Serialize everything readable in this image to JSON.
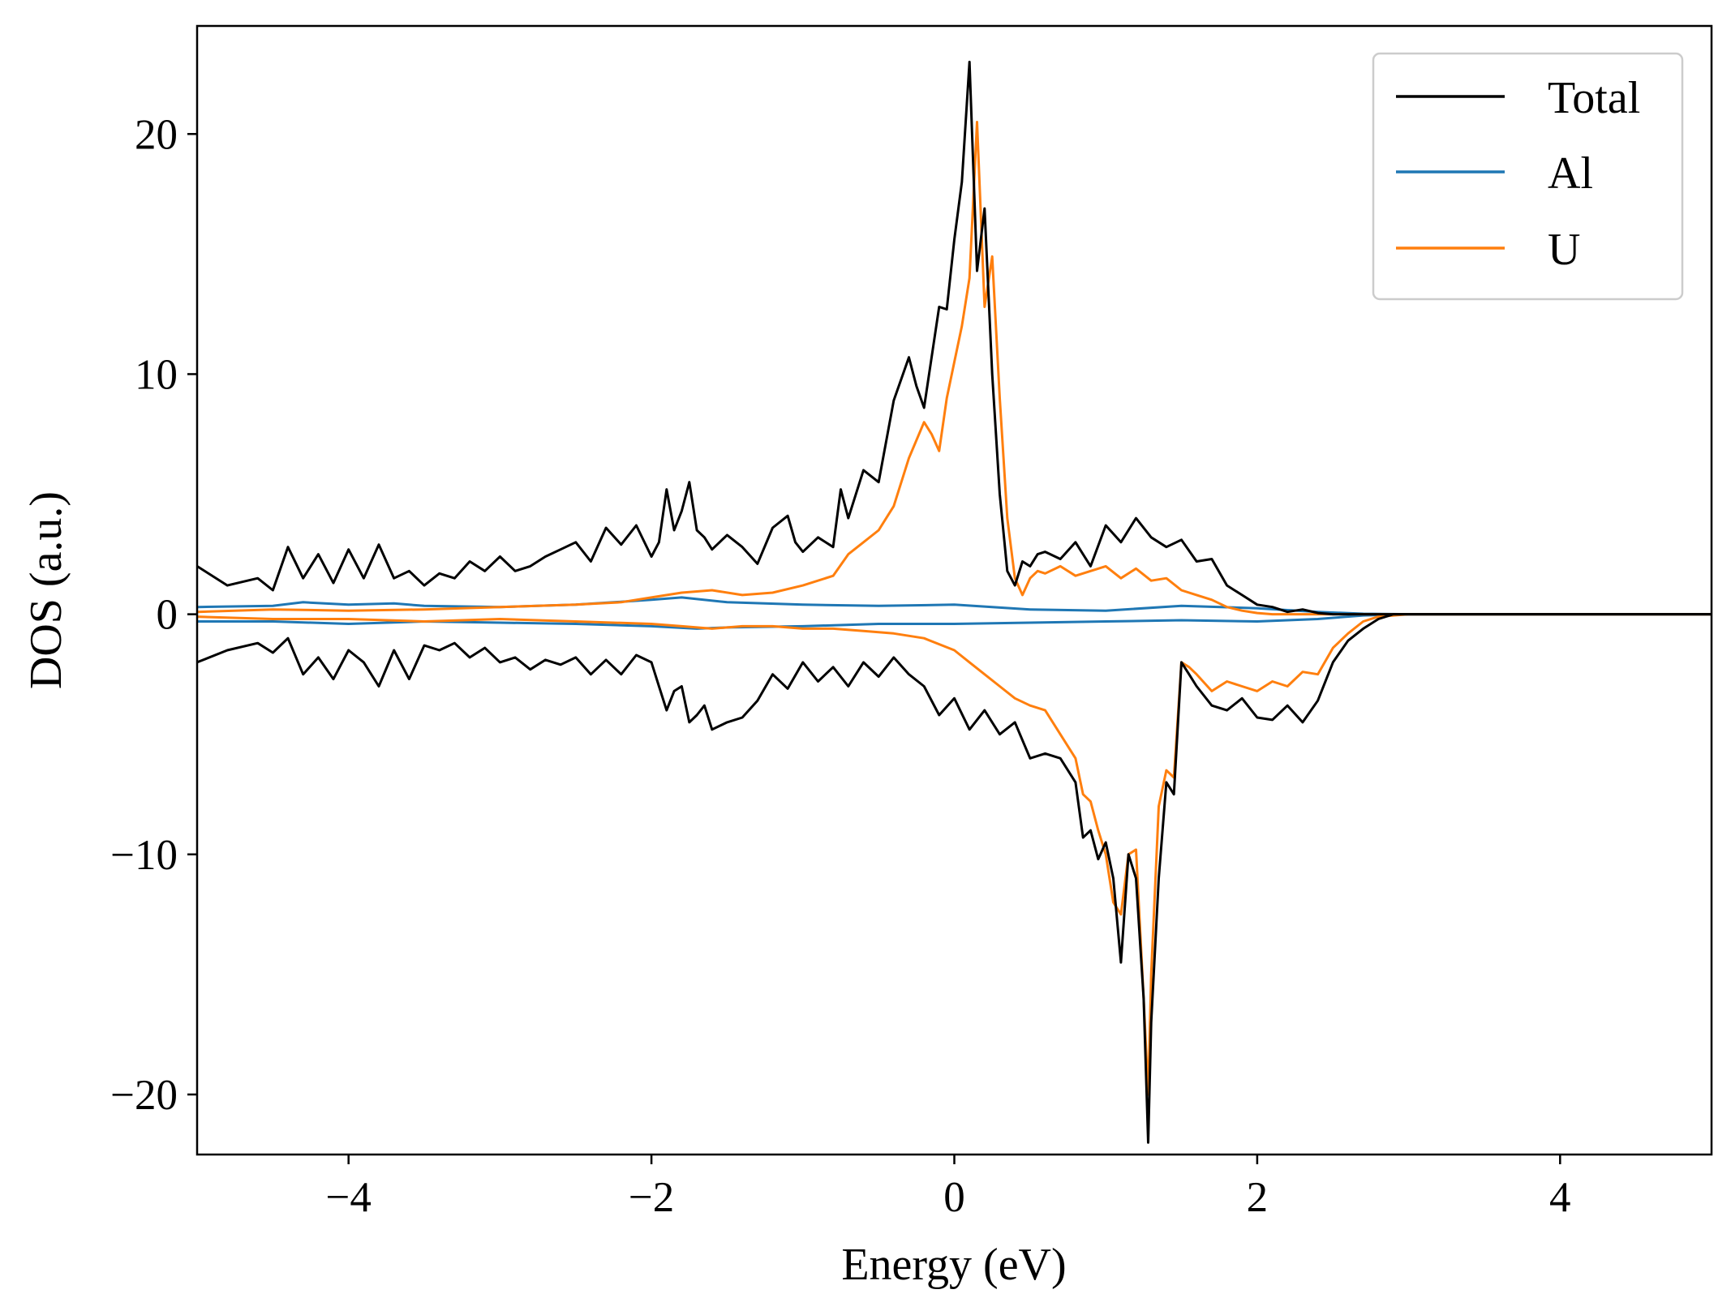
{
  "chart_data": {
    "type": "line",
    "title": "",
    "xlabel": "Energy (eV)",
    "ylabel": "DOS (a.u.)",
    "xlim": [
      -5,
      5
    ],
    "ylim": [
      -22.5,
      24.5
    ],
    "xticks": [
      -4,
      -2,
      0,
      2,
      4
    ],
    "xtick_labels": [
      "−4",
      "−2",
      "0",
      "2",
      "4"
    ],
    "yticks": [
      -20,
      -10,
      0,
      10,
      20
    ],
    "ytick_labels": [
      "−20",
      "−10",
      "0",
      "10",
      "20"
    ],
    "legend": {
      "placement": "top-right",
      "entries": [
        "Total",
        "Al",
        "U"
      ]
    },
    "grid": false,
    "colors": {
      "Total": "#000000",
      "Al": "#1f77b4",
      "U": "#ff7f0e"
    },
    "series": [
      {
        "name": "Total",
        "spin": "up",
        "x": [
          -5.0,
          -4.8,
          -4.6,
          -4.5,
          -4.4,
          -4.3,
          -4.2,
          -4.1,
          -4.0,
          -3.9,
          -3.8,
          -3.7,
          -3.6,
          -3.5,
          -3.4,
          -3.3,
          -3.2,
          -3.1,
          -3.0,
          -2.9,
          -2.8,
          -2.7,
          -2.6,
          -2.5,
          -2.4,
          -2.3,
          -2.2,
          -2.1,
          -2.0,
          -1.95,
          -1.9,
          -1.85,
          -1.8,
          -1.75,
          -1.7,
          -1.65,
          -1.6,
          -1.5,
          -1.4,
          -1.3,
          -1.2,
          -1.1,
          -1.05,
          -1.0,
          -0.9,
          -0.8,
          -0.75,
          -0.7,
          -0.6,
          -0.5,
          -0.4,
          -0.3,
          -0.25,
          -0.2,
          -0.1,
          -0.05,
          0.0,
          0.05,
          0.1,
          0.15,
          0.2,
          0.25,
          0.3,
          0.35,
          0.4,
          0.45,
          0.5,
          0.55,
          0.6,
          0.7,
          0.8,
          0.9,
          1.0,
          1.1,
          1.2,
          1.3,
          1.4,
          1.5,
          1.6,
          1.7,
          1.8,
          1.9,
          2.0,
          2.1,
          2.2,
          2.3,
          2.4,
          2.5,
          2.6,
          2.7,
          2.8,
          2.9,
          3.0,
          3.2,
          4.0,
          5.0
        ],
        "y": [
          2.0,
          1.2,
          1.5,
          1.0,
          2.8,
          1.5,
          2.5,
          1.3,
          2.7,
          1.5,
          2.9,
          1.5,
          1.8,
          1.2,
          1.7,
          1.5,
          2.2,
          1.8,
          2.4,
          1.8,
          2.0,
          2.4,
          2.7,
          3.0,
          2.2,
          3.6,
          2.9,
          3.7,
          2.4,
          3.0,
          5.2,
          3.5,
          4.3,
          5.5,
          3.5,
          3.2,
          2.7,
          3.3,
          2.8,
          2.1,
          3.6,
          4.1,
          3.0,
          2.6,
          3.2,
          2.8,
          5.2,
          4.0,
          6.0,
          5.5,
          8.9,
          10.7,
          9.5,
          8.6,
          12.8,
          12.7,
          15.6,
          18.0,
          23.0,
          14.3,
          16.9,
          10.0,
          5.0,
          1.8,
          1.2,
          2.2,
          2.0,
          2.5,
          2.6,
          2.3,
          3.0,
          2.0,
          3.7,
          3.0,
          4.0,
          3.2,
          2.8,
          3.1,
          2.2,
          2.3,
          1.2,
          0.8,
          0.4,
          0.3,
          0.1,
          0.2,
          0.05,
          0.0,
          0.0,
          0.0,
          0.0,
          0.0,
          0.0,
          0.0,
          0.0,
          0.0
        ]
      },
      {
        "name": "Total",
        "spin": "down",
        "x": [
          -5.0,
          -4.8,
          -4.6,
          -4.5,
          -4.4,
          -4.3,
          -4.2,
          -4.1,
          -4.0,
          -3.9,
          -3.8,
          -3.7,
          -3.6,
          -3.5,
          -3.4,
          -3.3,
          -3.2,
          -3.1,
          -3.0,
          -2.9,
          -2.8,
          -2.7,
          -2.6,
          -2.5,
          -2.4,
          -2.3,
          -2.2,
          -2.1,
          -2.0,
          -1.95,
          -1.9,
          -1.85,
          -1.8,
          -1.75,
          -1.7,
          -1.65,
          -1.6,
          -1.5,
          -1.4,
          -1.3,
          -1.2,
          -1.1,
          -1.0,
          -0.9,
          -0.8,
          -0.7,
          -0.6,
          -0.5,
          -0.4,
          -0.3,
          -0.2,
          -0.1,
          0.0,
          0.1,
          0.2,
          0.3,
          0.4,
          0.5,
          0.6,
          0.7,
          0.8,
          0.85,
          0.9,
          0.95,
          1.0,
          1.05,
          1.1,
          1.15,
          1.2,
          1.25,
          1.28,
          1.3,
          1.35,
          1.4,
          1.45,
          1.5,
          1.55,
          1.6,
          1.7,
          1.8,
          1.9,
          2.0,
          2.1,
          2.2,
          2.3,
          2.4,
          2.5,
          2.6,
          2.7,
          2.8,
          2.9,
          3.0,
          4.0,
          5.0
        ],
        "y": [
          -2.0,
          -1.5,
          -1.2,
          -1.6,
          -1.0,
          -2.5,
          -1.8,
          -2.7,
          -1.5,
          -2.0,
          -3.0,
          -1.5,
          -2.7,
          -1.3,
          -1.5,
          -1.2,
          -1.8,
          -1.4,
          -2.0,
          -1.8,
          -2.3,
          -1.9,
          -2.1,
          -1.8,
          -2.5,
          -1.9,
          -2.5,
          -1.7,
          -2.0,
          -3.0,
          -4.0,
          -3.2,
          -3.0,
          -4.5,
          -4.2,
          -3.8,
          -4.8,
          -4.5,
          -4.3,
          -3.6,
          -2.5,
          -3.1,
          -2.0,
          -2.8,
          -2.2,
          -3.0,
          -2.0,
          -2.6,
          -1.8,
          -2.5,
          -3.0,
          -4.2,
          -3.5,
          -4.8,
          -4.0,
          -5.0,
          -4.5,
          -6.0,
          -5.8,
          -6.0,
          -7.0,
          -9.3,
          -9.0,
          -10.2,
          -9.5,
          -11.0,
          -14.5,
          -10.0,
          -11.0,
          -16.0,
          -22.0,
          -17.0,
          -11.0,
          -7.0,
          -7.5,
          -2.0,
          -2.5,
          -3.0,
          -3.8,
          -4.0,
          -3.5,
          -4.3,
          -4.4,
          -3.8,
          -4.5,
          -3.6,
          -2.0,
          -1.1,
          -0.6,
          -0.2,
          0.0,
          0.0,
          0.0,
          0.0
        ]
      },
      {
        "name": "Al",
        "spin": "up",
        "x": [
          -5.0,
          -4.5,
          -4.3,
          -4.0,
          -3.7,
          -3.5,
          -3.0,
          -2.5,
          -2.0,
          -1.8,
          -1.5,
          -1.0,
          -0.5,
          0.0,
          0.5,
          1.0,
          1.5,
          2.0,
          2.4,
          2.7,
          3.0,
          5.0
        ],
        "y": [
          0.3,
          0.35,
          0.5,
          0.4,
          0.45,
          0.35,
          0.3,
          0.4,
          0.6,
          0.7,
          0.5,
          0.4,
          0.35,
          0.4,
          0.2,
          0.15,
          0.35,
          0.25,
          0.1,
          0.02,
          0.0,
          0.0
        ]
      },
      {
        "name": "Al",
        "spin": "down",
        "x": [
          -5.0,
          -4.5,
          -4.0,
          -3.5,
          -3.0,
          -2.5,
          -2.0,
          -1.7,
          -1.5,
          -1.0,
          -0.5,
          0.0,
          0.5,
          1.0,
          1.5,
          2.0,
          2.4,
          2.7,
          3.0,
          5.0
        ],
        "y": [
          -0.3,
          -0.3,
          -0.4,
          -0.3,
          -0.35,
          -0.4,
          -0.5,
          -0.6,
          -0.55,
          -0.5,
          -0.4,
          -0.4,
          -0.35,
          -0.3,
          -0.25,
          -0.3,
          -0.2,
          -0.05,
          0.0,
          0.0
        ]
      },
      {
        "name": "U",
        "spin": "up",
        "x": [
          -5.0,
          -4.5,
          -4.0,
          -3.5,
          -3.0,
          -2.5,
          -2.2,
          -2.0,
          -1.8,
          -1.6,
          -1.4,
          -1.2,
          -1.0,
          -0.8,
          -0.7,
          -0.6,
          -0.5,
          -0.4,
          -0.3,
          -0.2,
          -0.15,
          -0.1,
          -0.05,
          0.0,
          0.05,
          0.1,
          0.15,
          0.2,
          0.25,
          0.3,
          0.35,
          0.4,
          0.45,
          0.5,
          0.55,
          0.6,
          0.7,
          0.8,
          0.9,
          1.0,
          1.1,
          1.2,
          1.3,
          1.4,
          1.5,
          1.6,
          1.7,
          1.8,
          1.9,
          2.0,
          2.1,
          2.2,
          2.3,
          2.4,
          2.5,
          2.6,
          2.7,
          2.8,
          3.0,
          5.0
        ],
        "y": [
          0.1,
          0.2,
          0.15,
          0.2,
          0.3,
          0.4,
          0.5,
          0.7,
          0.9,
          1.0,
          0.8,
          0.9,
          1.2,
          1.6,
          2.5,
          3.0,
          3.5,
          4.5,
          6.5,
          8.0,
          7.5,
          6.8,
          9.0,
          10.5,
          12.0,
          14.0,
          20.5,
          12.8,
          14.9,
          9.0,
          4.0,
          1.5,
          0.8,
          1.5,
          1.8,
          1.7,
          2.0,
          1.6,
          1.8,
          2.0,
          1.5,
          1.9,
          1.4,
          1.5,
          1.0,
          0.8,
          0.6,
          0.3,
          0.15,
          0.05,
          0.0,
          0.0,
          0.0,
          0.0,
          0.0,
          0.0,
          0.0,
          0.0,
          0.0,
          0.0
        ]
      },
      {
        "name": "U",
        "spin": "down",
        "x": [
          -5.0,
          -4.5,
          -4.0,
          -3.5,
          -3.0,
          -2.5,
          -2.0,
          -1.8,
          -1.6,
          -1.4,
          -1.2,
          -1.0,
          -0.8,
          -0.6,
          -0.4,
          -0.2,
          0.0,
          0.1,
          0.2,
          0.3,
          0.4,
          0.5,
          0.6,
          0.7,
          0.8,
          0.85,
          0.9,
          0.95,
          1.0,
          1.05,
          1.1,
          1.15,
          1.2,
          1.25,
          1.28,
          1.3,
          1.35,
          1.4,
          1.45,
          1.5,
          1.55,
          1.6,
          1.7,
          1.8,
          1.9,
          2.0,
          2.1,
          2.2,
          2.3,
          2.4,
          2.5,
          2.6,
          2.7,
          2.8,
          3.0,
          5.0
        ],
        "y": [
          -0.1,
          -0.2,
          -0.2,
          -0.3,
          -0.2,
          -0.3,
          -0.4,
          -0.5,
          -0.6,
          -0.5,
          -0.5,
          -0.6,
          -0.6,
          -0.7,
          -0.8,
          -1.0,
          -1.5,
          -2.0,
          -2.5,
          -3.0,
          -3.5,
          -3.8,
          -4.0,
          -5.0,
          -6.0,
          -7.5,
          -7.8,
          -9.0,
          -10.0,
          -12.0,
          -12.5,
          -10.0,
          -9.8,
          -16.0,
          -20.0,
          -15.0,
          -8.0,
          -6.5,
          -6.8,
          -2.0,
          -2.2,
          -2.5,
          -3.2,
          -2.8,
          -3.0,
          -3.2,
          -2.8,
          -3.0,
          -2.4,
          -2.5,
          -1.4,
          -0.8,
          -0.3,
          -0.1,
          0.0,
          0.0
        ]
      }
    ]
  }
}
